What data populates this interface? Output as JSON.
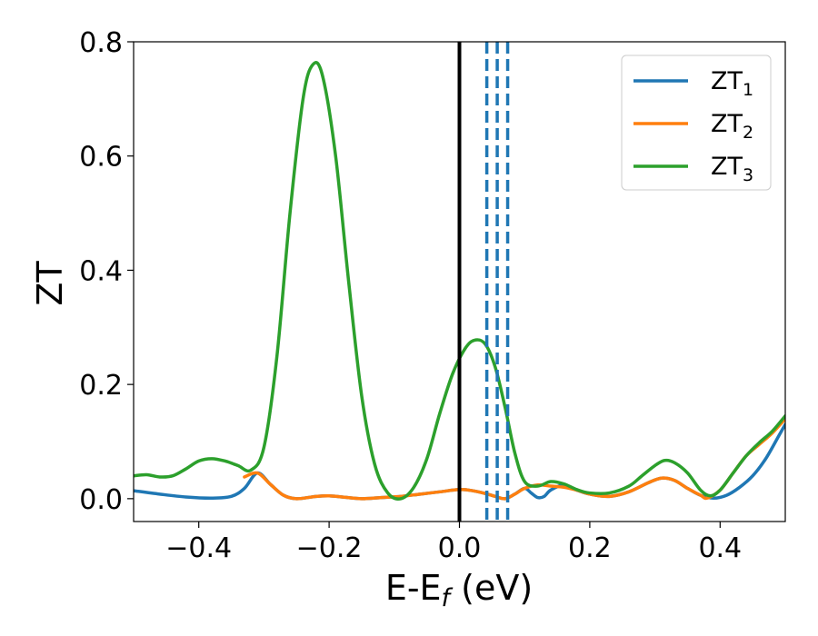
{
  "chart_data": {
    "type": "line",
    "xlabel": "E-E",
    "xlabel_sub": "f",
    "xlabel_unit": " (eV)",
    "ylabel": "ZT",
    "xlim": [
      -0.5,
      0.5
    ],
    "ylim": [
      -0.04,
      0.8
    ],
    "xticks": [
      -0.4,
      -0.2,
      0.0,
      0.2,
      0.4
    ],
    "xtick_labels": [
      "−0.4",
      "−0.2",
      "0.0",
      "0.2",
      "0.4"
    ],
    "yticks": [
      0.0,
      0.2,
      0.4,
      0.6,
      0.8
    ],
    "ytick_labels": [
      "0.0",
      "0.2",
      "0.4",
      "0.6",
      "0.8"
    ],
    "grid": false,
    "legend_position": "top-right",
    "vertical_lines": [
      {
        "x": 0.0,
        "style": "solid",
        "color": "#000000"
      },
      {
        "x": 0.042,
        "style": "dashed",
        "color": "#1f77b4"
      },
      {
        "x": 0.058,
        "style": "dashed",
        "color": "#1f77b4"
      },
      {
        "x": 0.074,
        "style": "dashed",
        "color": "#1f77b4"
      }
    ],
    "series": [
      {
        "name": "ZT",
        "sub": "1",
        "color": "#1f77b4",
        "points": [
          [
            -0.5,
            0.014
          ],
          [
            -0.46,
            0.008
          ],
          [
            -0.42,
            0.003
          ],
          [
            -0.38,
            0.001
          ],
          [
            -0.35,
            0.004
          ],
          [
            -0.33,
            0.018
          ],
          [
            -0.31,
            0.045
          ],
          [
            -0.29,
            0.025
          ],
          [
            -0.27,
            0.006
          ],
          [
            -0.25,
            0.0
          ],
          [
            -0.22,
            0.004
          ],
          [
            -0.2,
            0.005
          ],
          [
            -0.18,
            0.003
          ],
          [
            -0.15,
            0.0
          ],
          [
            -0.12,
            0.002
          ],
          [
            -0.09,
            0.004
          ],
          [
            -0.06,
            0.008
          ],
          [
            -0.03,
            0.012
          ],
          [
            0.0,
            0.016
          ],
          [
            0.02,
            0.014
          ],
          [
            0.04,
            0.009
          ],
          [
            0.055,
            0.004
          ],
          [
            0.07,
            0.0
          ],
          [
            0.085,
            0.008
          ],
          [
            0.1,
            0.018
          ],
          [
            0.11,
            0.01
          ],
          [
            0.12,
            0.002
          ],
          [
            0.13,
            0.004
          ],
          [
            0.14,
            0.015
          ],
          [
            0.16,
            0.024
          ],
          [
            0.18,
            0.015
          ],
          [
            0.2,
            0.008
          ],
          [
            0.23,
            0.004
          ],
          [
            0.26,
            0.012
          ],
          [
            0.29,
            0.028
          ],
          [
            0.31,
            0.036
          ],
          [
            0.33,
            0.032
          ],
          [
            0.35,
            0.018
          ],
          [
            0.37,
            0.006
          ],
          [
            0.39,
            0.001
          ],
          [
            0.41,
            0.006
          ],
          [
            0.43,
            0.02
          ],
          [
            0.45,
            0.04
          ],
          [
            0.47,
            0.07
          ],
          [
            0.49,
            0.11
          ],
          [
            0.5,
            0.13
          ]
        ]
      },
      {
        "name": "ZT",
        "sub": "2",
        "color": "#ff7f0e",
        "points": [
          [
            -0.33,
            0.038
          ],
          [
            -0.31,
            0.045
          ],
          [
            -0.29,
            0.025
          ],
          [
            -0.27,
            0.006
          ],
          [
            -0.25,
            0.0
          ],
          [
            -0.22,
            0.004
          ],
          [
            -0.2,
            0.005
          ],
          [
            -0.18,
            0.003
          ],
          [
            -0.15,
            0.0
          ],
          [
            -0.12,
            0.002
          ],
          [
            -0.09,
            0.004
          ],
          [
            -0.06,
            0.008
          ],
          [
            -0.03,
            0.012
          ],
          [
            0.0,
            0.016
          ],
          [
            0.02,
            0.014
          ],
          [
            0.04,
            0.009
          ],
          [
            0.055,
            0.004
          ],
          [
            0.07,
            0.0
          ],
          [
            0.085,
            0.008
          ],
          [
            0.1,
            0.018
          ],
          [
            0.12,
            0.024
          ],
          [
            0.14,
            0.022
          ],
          [
            0.16,
            0.02
          ],
          [
            0.18,
            0.015
          ],
          [
            0.2,
            0.008
          ],
          [
            0.23,
            0.004
          ],
          [
            0.26,
            0.012
          ],
          [
            0.29,
            0.028
          ],
          [
            0.31,
            0.036
          ],
          [
            0.33,
            0.032
          ],
          [
            0.35,
            0.018
          ],
          [
            0.37,
            0.006
          ],
          [
            0.38,
            0.001
          ],
          [
            0.4,
            0.015
          ],
          [
            0.42,
            0.045
          ],
          [
            0.44,
            0.075
          ],
          [
            0.46,
            0.095
          ],
          [
            0.48,
            0.115
          ],
          [
            0.5,
            0.14
          ]
        ]
      },
      {
        "name": "ZT",
        "sub": "3",
        "color": "#2ca02c",
        "points": [
          [
            -0.5,
            0.04
          ],
          [
            -0.48,
            0.042
          ],
          [
            -0.46,
            0.038
          ],
          [
            -0.44,
            0.04
          ],
          [
            -0.42,
            0.052
          ],
          [
            -0.4,
            0.066
          ],
          [
            -0.38,
            0.07
          ],
          [
            -0.36,
            0.066
          ],
          [
            -0.34,
            0.058
          ],
          [
            -0.32,
            0.05
          ],
          [
            -0.3,
            0.09
          ],
          [
            -0.28,
            0.25
          ],
          [
            -0.26,
            0.5
          ],
          [
            -0.24,
            0.7
          ],
          [
            -0.225,
            0.76
          ],
          [
            -0.21,
            0.74
          ],
          [
            -0.19,
            0.6
          ],
          [
            -0.17,
            0.38
          ],
          [
            -0.15,
            0.18
          ],
          [
            -0.13,
            0.06
          ],
          [
            -0.11,
            0.01
          ],
          [
            -0.09,
            0.0
          ],
          [
            -0.07,
            0.02
          ],
          [
            -0.05,
            0.07
          ],
          [
            -0.03,
            0.15
          ],
          [
            -0.01,
            0.22
          ],
          [
            0.01,
            0.265
          ],
          [
            0.025,
            0.278
          ],
          [
            0.04,
            0.27
          ],
          [
            0.055,
            0.23
          ],
          [
            0.07,
            0.16
          ],
          [
            0.085,
            0.08
          ],
          [
            0.1,
            0.03
          ],
          [
            0.12,
            0.022
          ],
          [
            0.14,
            0.03
          ],
          [
            0.16,
            0.026
          ],
          [
            0.18,
            0.016
          ],
          [
            0.2,
            0.01
          ],
          [
            0.23,
            0.01
          ],
          [
            0.26,
            0.022
          ],
          [
            0.28,
            0.04
          ],
          [
            0.3,
            0.058
          ],
          [
            0.315,
            0.067
          ],
          [
            0.33,
            0.063
          ],
          [
            0.35,
            0.045
          ],
          [
            0.37,
            0.015
          ],
          [
            0.385,
            0.005
          ],
          [
            0.4,
            0.015
          ],
          [
            0.42,
            0.045
          ],
          [
            0.44,
            0.075
          ],
          [
            0.46,
            0.098
          ],
          [
            0.48,
            0.118
          ],
          [
            0.5,
            0.145
          ]
        ]
      }
    ]
  }
}
